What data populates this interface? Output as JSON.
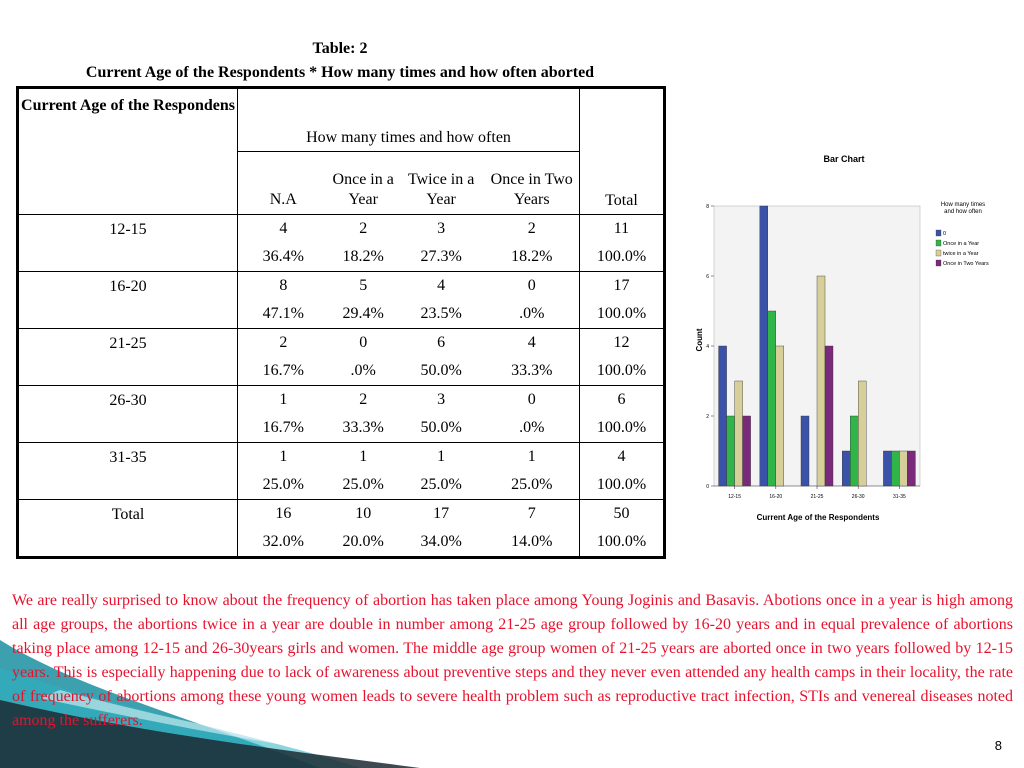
{
  "table": {
    "title_line1": "Table: 2",
    "title_line2": "Current Age of the Respondents * How many times and how often aborted",
    "row_header": "Current Age of the Respondens",
    "group_header": "How many times and how often",
    "columns": [
      "N.A",
      "Once in a Year",
      "Twice in a Year",
      "Once in Two Years"
    ],
    "total_header": "Total",
    "rows": [
      {
        "label": "12-15",
        "counts": [
          "4",
          "2",
          "3",
          "2",
          "11"
        ],
        "pcts": [
          "36.4%",
          "18.2%",
          "27.3%",
          "18.2%",
          "100.0%"
        ]
      },
      {
        "label": "16-20",
        "counts": [
          "8",
          "5",
          "4",
          "0",
          "17"
        ],
        "pcts": [
          "47.1%",
          "29.4%",
          "23.5%",
          ".0%",
          "100.0%"
        ]
      },
      {
        "label": "21-25",
        "counts": [
          "2",
          "0",
          "6",
          "4",
          "12"
        ],
        "pcts": [
          "16.7%",
          ".0%",
          "50.0%",
          "33.3%",
          "100.0%"
        ]
      },
      {
        "label": "26-30",
        "counts": [
          "1",
          "2",
          "3",
          "0",
          "6"
        ],
        "pcts": [
          "16.7%",
          "33.3%",
          "50.0%",
          ".0%",
          "100.0%"
        ]
      },
      {
        "label": "31-35",
        "counts": [
          "1",
          "1",
          "1",
          "1",
          "4"
        ],
        "pcts": [
          "25.0%",
          "25.0%",
          "25.0%",
          "25.0%",
          "100.0%"
        ]
      },
      {
        "label": "Total",
        "counts": [
          "16",
          "10",
          "17",
          "7",
          "50"
        ],
        "pcts": [
          "32.0%",
          "20.0%",
          "34.0%",
          "14.0%",
          "100.0%"
        ]
      }
    ]
  },
  "chart_data": {
    "type": "bar",
    "title": "Bar Chart",
    "xlabel": "Current Age of the Respondents",
    "ylabel": "Count",
    "ylim": [
      0,
      8
    ],
    "yticks": [
      0,
      2,
      4,
      6,
      8
    ],
    "categories": [
      "12-15",
      "16-20",
      "21-25",
      "26-30",
      "31-35"
    ],
    "legend_title": "How many times and how often",
    "legend_position": "right",
    "series": [
      {
        "name": "0",
        "color": "#3a52a8",
        "values": [
          4,
          8,
          2,
          1,
          1
        ]
      },
      {
        "name": "Once in a Year",
        "color": "#2fb548",
        "values": [
          2,
          5,
          0,
          2,
          1
        ]
      },
      {
        "name": "twice in a Year",
        "color": "#d6cf9a",
        "values": [
          3,
          4,
          6,
          3,
          1
        ]
      },
      {
        "name": "Once in Two Years",
        "color": "#7a2a7a",
        "values": [
          2,
          0,
          4,
          0,
          1
        ]
      }
    ]
  },
  "paragraph": "We are really surprised to know about the frequency of abortion has taken place among Young Joginis and Basavis. Abotions once in a year is high among all age groups, the abortions twice in a year are double in number among 21-25 age group followed by 16-20 years and in equal prevalence of abortions taking place among 12-15 and 26-30years girls and women. The middle age group women of 21-25 years are aborted once in two years followed by 12-15 years. This is especially happening due to lack of awareness about preventive steps and they never even attended any health camps in their locality, the rate of frequency of abortions among these young women leads to severe health problem such as reproductive tract infection, STIs and venereal diseases noted among the sufferers.",
  "page_number": "8",
  "colors": {
    "paragraph_text": "#e8112d",
    "decoration_teal": "#1a8fa0",
    "decoration_dark": "#1b2a33"
  }
}
